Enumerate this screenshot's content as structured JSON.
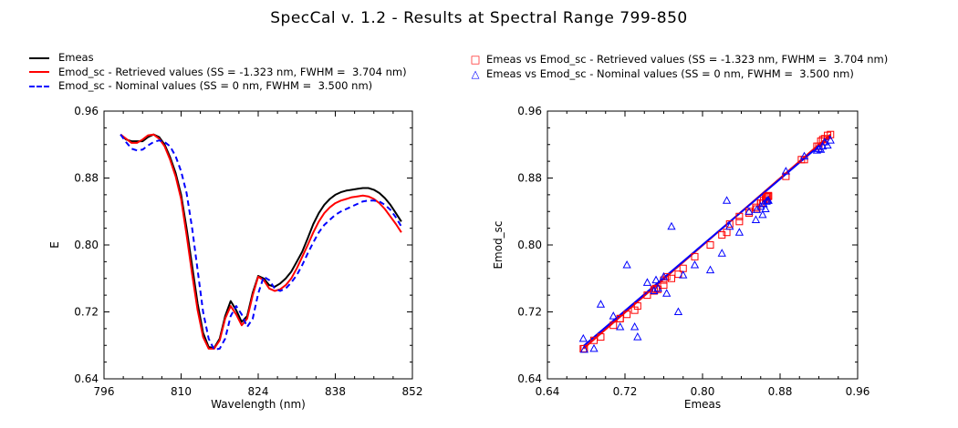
{
  "page_title": "SpecCal v. 1.2 - Results at Spectral Range 799-850",
  "left_legend": [
    {
      "label": "Emeas",
      "color": "#000000",
      "style": "solid"
    },
    {
      "label": "Emod_sc - Retrieved values (SS = -1.323 nm, FWHM =  3.704 nm)",
      "color": "#ff0000",
      "style": "solid"
    },
    {
      "label": "Emod_sc - Nominal values (SS = 0 nm, FWHM =  3.500 nm)",
      "color": "#0000ff",
      "style": "dashed"
    }
  ],
  "right_legend": [
    {
      "label": "Emeas vs Emod_sc - Retrieved values (SS = -1.323 nm, FWHM =  3.704 nm)",
      "color": "#ff0000",
      "marker": "square"
    },
    {
      "label": "Emeas vs Emod_sc - Nominal values (SS = 0 nm, FWHM =  3.500 nm)",
      "color": "#0000ff",
      "marker": "triangle"
    }
  ],
  "chart_data": [
    {
      "type": "line",
      "xlabel": "Wavelength (nm)",
      "ylabel": "E",
      "xlim": [
        796,
        852
      ],
      "ylim": [
        0.64,
        0.96
      ],
      "xticks": [
        "796",
        "810",
        "824",
        "838",
        "852"
      ],
      "yticks": [
        "0.64",
        "0.72",
        "0.80",
        "0.88",
        "0.96"
      ],
      "series": [
        {
          "name": "Emeas",
          "color": "#000000",
          "dash": "",
          "x": [
            799,
            800,
            801,
            802,
            803,
            804,
            805,
            806,
            807,
            808,
            809,
            810,
            811,
            812,
            813,
            814,
            815,
            816,
            817,
            818,
            819,
            820,
            821,
            822,
            823,
            824,
            825,
            826,
            827,
            828,
            829,
            830,
            831,
            832,
            833,
            834,
            835,
            836,
            837,
            838,
            839,
            840,
            841,
            842,
            843,
            844,
            845,
            846,
            847,
            848,
            849,
            850
          ],
          "y": [
            0.932,
            0.926,
            0.924,
            0.924,
            0.924,
            0.929,
            0.932,
            0.929,
            0.92,
            0.905,
            0.886,
            0.86,
            0.82,
            0.775,
            0.73,
            0.695,
            0.678,
            0.677,
            0.688,
            0.715,
            0.733,
            0.722,
            0.708,
            0.715,
            0.743,
            0.763,
            0.76,
            0.752,
            0.75,
            0.754,
            0.76,
            0.768,
            0.78,
            0.792,
            0.808,
            0.825,
            0.838,
            0.848,
            0.855,
            0.86,
            0.863,
            0.865,
            0.866,
            0.867,
            0.868,
            0.868,
            0.866,
            0.862,
            0.856,
            0.848,
            0.838,
            0.828
          ]
        },
        {
          "name": "Emod_sc - Retrieved values",
          "color": "#ff0000",
          "dash": "",
          "x": [
            799,
            800,
            801,
            802,
            803,
            804,
            805,
            806,
            807,
            808,
            809,
            810,
            811,
            812,
            813,
            814,
            815,
            816,
            817,
            818,
            819,
            820,
            821,
            822,
            823,
            824,
            825,
            826,
            827,
            828,
            829,
            830,
            831,
            832,
            833,
            834,
            835,
            836,
            837,
            838,
            839,
            840,
            841,
            842,
            843,
            844,
            845,
            846,
            847,
            848,
            849,
            850
          ],
          "y": [
            0.932,
            0.927,
            0.922,
            0.922,
            0.926,
            0.931,
            0.932,
            0.927,
            0.918,
            0.902,
            0.882,
            0.855,
            0.812,
            0.765,
            0.722,
            0.69,
            0.676,
            0.676,
            0.686,
            0.712,
            0.727,
            0.717,
            0.704,
            0.712,
            0.74,
            0.762,
            0.758,
            0.748,
            0.745,
            0.747,
            0.752,
            0.76,
            0.772,
            0.786,
            0.8,
            0.815,
            0.828,
            0.838,
            0.845,
            0.85,
            0.853,
            0.855,
            0.857,
            0.858,
            0.859,
            0.858,
            0.855,
            0.85,
            0.843,
            0.834,
            0.825,
            0.815
          ]
        },
        {
          "name": "Emod_sc - Nominal values",
          "color": "#0000ff",
          "dash": "6,4",
          "x": [
            799,
            800,
            801,
            802,
            803,
            804,
            805,
            806,
            807,
            808,
            809,
            810,
            811,
            812,
            813,
            814,
            815,
            816,
            817,
            818,
            819,
            820,
            821,
            822,
            823,
            824,
            825,
            826,
            827,
            828,
            829,
            830,
            831,
            832,
            833,
            834,
            835,
            836,
            837,
            838,
            839,
            840,
            841,
            842,
            843,
            844,
            845,
            846,
            847,
            848,
            849,
            850
          ],
          "y": [
            0.932,
            0.923,
            0.915,
            0.913,
            0.914,
            0.919,
            0.923,
            0.925,
            0.923,
            0.918,
            0.906,
            0.888,
            0.862,
            0.82,
            0.77,
            0.72,
            0.688,
            0.675,
            0.676,
            0.688,
            0.715,
            0.727,
            0.717,
            0.702,
            0.712,
            0.742,
            0.762,
            0.758,
            0.748,
            0.745,
            0.748,
            0.755,
            0.764,
            0.776,
            0.79,
            0.803,
            0.815,
            0.824,
            0.83,
            0.836,
            0.84,
            0.843,
            0.846,
            0.849,
            0.852,
            0.853,
            0.853,
            0.852,
            0.848,
            0.842,
            0.833,
            0.822
          ]
        }
      ]
    },
    {
      "type": "scatter",
      "xlabel": "Emeas",
      "ylabel": "Emod_sc",
      "xlim": [
        0.64,
        0.96
      ],
      "ylim": [
        0.64,
        0.96
      ],
      "xticks": [
        "0.64",
        "0.72",
        "0.80",
        "0.88",
        "0.96"
      ],
      "yticks": [
        "0.64",
        "0.72",
        "0.80",
        "0.88",
        "0.96"
      ],
      "fit_lines": [
        {
          "name": "Retrieved fit",
          "color": "#ff0000",
          "x": [
            0.677,
            0.932
          ],
          "y": [
            0.676,
            0.932
          ]
        },
        {
          "name": "Nominal fit",
          "color": "#0000ff",
          "x": [
            0.677,
            0.932
          ],
          "y": [
            0.679,
            0.93
          ]
        }
      ],
      "series": [
        {
          "name": "Emeas vs Emod_sc - Retrieved values",
          "color": "#ff0000",
          "marker": "square",
          "x": [
            0.677,
            0.678,
            0.688,
            0.695,
            0.708,
            0.715,
            0.715,
            0.722,
            0.73,
            0.733,
            0.743,
            0.75,
            0.75,
            0.752,
            0.754,
            0.76,
            0.76,
            0.763,
            0.768,
            0.775,
            0.78,
            0.792,
            0.808,
            0.82,
            0.825,
            0.828,
            0.838,
            0.838,
            0.848,
            0.848,
            0.855,
            0.856,
            0.86,
            0.86,
            0.862,
            0.863,
            0.865,
            0.866,
            0.866,
            0.867,
            0.868,
            0.868,
            0.886,
            0.902,
            0.905,
            0.918,
            0.92,
            0.922,
            0.924,
            0.926,
            0.929,
            0.932
          ],
          "y": [
            0.676,
            0.676,
            0.686,
            0.69,
            0.704,
            0.712,
            0.712,
            0.717,
            0.722,
            0.727,
            0.74,
            0.745,
            0.747,
            0.748,
            0.747,
            0.752,
            0.758,
            0.762,
            0.76,
            0.765,
            0.772,
            0.786,
            0.8,
            0.812,
            0.815,
            0.825,
            0.828,
            0.834,
            0.838,
            0.84,
            0.845,
            0.843,
            0.85,
            0.85,
            0.85,
            0.853,
            0.855,
            0.855,
            0.857,
            0.858,
            0.859,
            0.858,
            0.882,
            0.902,
            0.902,
            0.918,
            0.918,
            0.924,
            0.926,
            0.927,
            0.931,
            0.932
          ]
        },
        {
          "name": "Emeas vs Emod_sc - Nominal values",
          "color": "#0000ff",
          "marker": "triangle",
          "x": [
            0.677,
            0.678,
            0.688,
            0.695,
            0.708,
            0.715,
            0.722,
            0.73,
            0.733,
            0.743,
            0.75,
            0.752,
            0.754,
            0.76,
            0.763,
            0.768,
            0.775,
            0.78,
            0.792,
            0.808,
            0.82,
            0.825,
            0.828,
            0.838,
            0.848,
            0.855,
            0.856,
            0.86,
            0.862,
            0.863,
            0.865,
            0.866,
            0.867,
            0.868,
            0.886,
            0.905,
            0.918,
            0.92,
            0.922,
            0.924,
            0.926,
            0.929,
            0.932
          ],
          "y": [
            0.688,
            0.675,
            0.676,
            0.729,
            0.715,
            0.702,
            0.776,
            0.702,
            0.69,
            0.755,
            0.745,
            0.758,
            0.748,
            0.762,
            0.742,
            0.822,
            0.72,
            0.764,
            0.776,
            0.77,
            0.79,
            0.853,
            0.822,
            0.815,
            0.84,
            0.83,
            0.842,
            0.846,
            0.836,
            0.849,
            0.843,
            0.852,
            0.853,
            0.853,
            0.888,
            0.906,
            0.913,
            0.915,
            0.914,
            0.918,
            0.923,
            0.919,
            0.925
          ]
        }
      ]
    }
  ]
}
